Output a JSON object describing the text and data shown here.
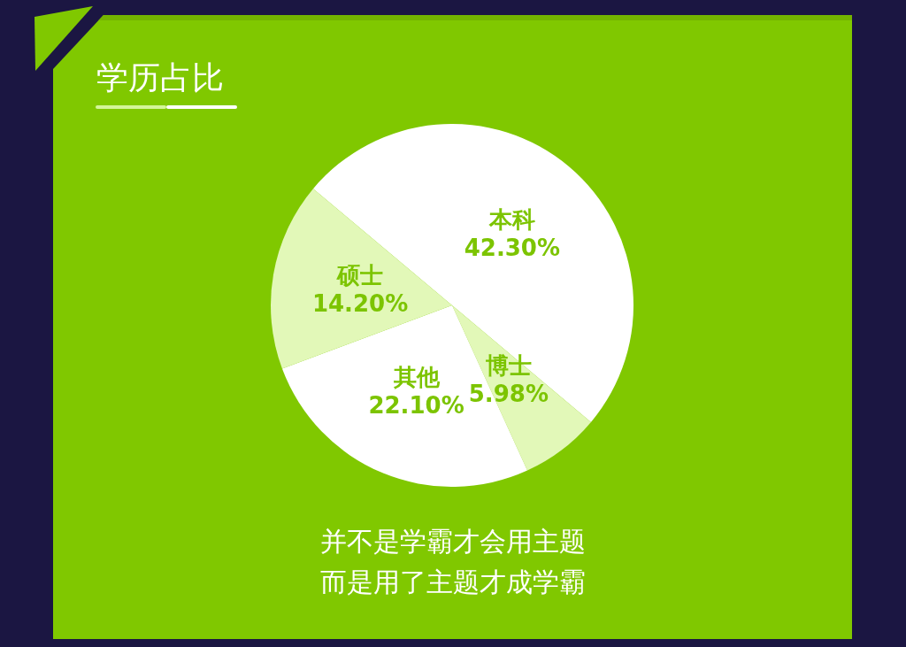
{
  "chart_data": {
    "type": "pie",
    "title": "学历占比",
    "categories": [
      "本科",
      "博士",
      "其他",
      "硕士"
    ],
    "values": [
      42.3,
      5.98,
      22.1,
      14.2
    ],
    "colors": [
      "#ffffff",
      "#e2f8b8",
      "#ffffff",
      "#e2f8b8"
    ],
    "value_labels": [
      "42.30%",
      "5.98%",
      "22.10%",
      "14.20%"
    ],
    "annotations": [
      "并不是学霸才会用主题",
      "而是用了主题才成学霸"
    ]
  }
}
